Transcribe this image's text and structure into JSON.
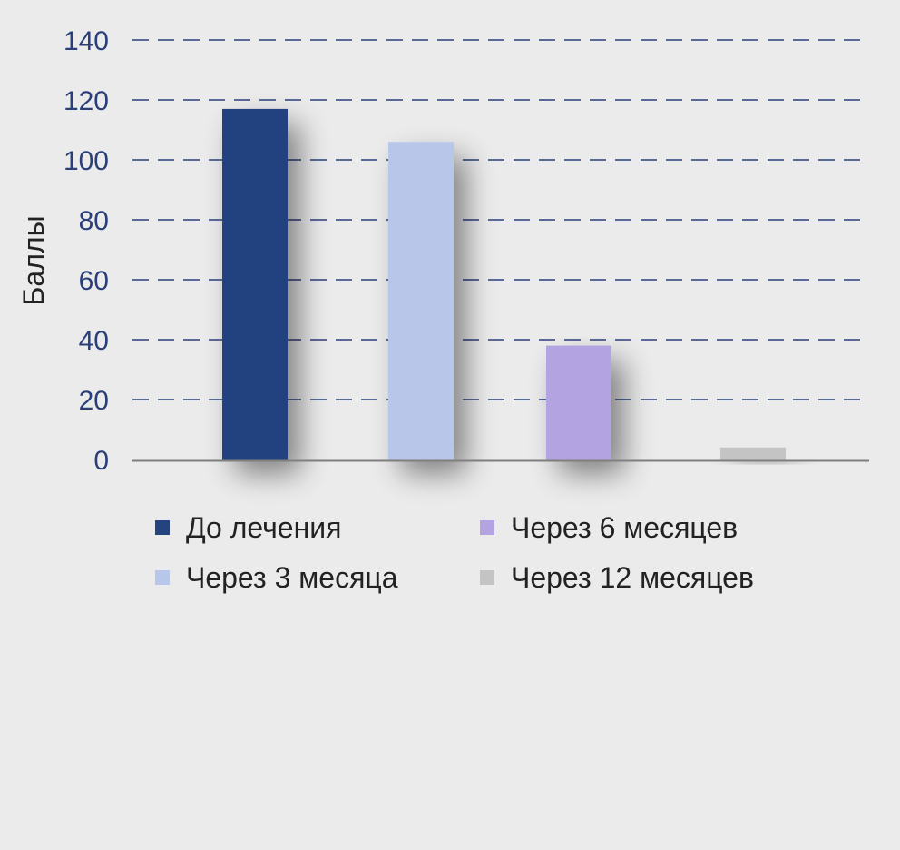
{
  "chart_data": {
    "type": "bar",
    "ylabel": "Баллы",
    "xlabel": "",
    "ylim": [
      0,
      140
    ],
    "yticks": [
      0,
      20,
      40,
      60,
      80,
      100,
      120,
      140
    ],
    "grid": true,
    "legend_position": "bottom",
    "series": [
      {
        "name": "До лечения",
        "value": 117,
        "color": "#24437f"
      },
      {
        "name": "Через 3 месяца",
        "value": 106,
        "color": "#b8c6ea"
      },
      {
        "name": "Через 6 месяцев",
        "value": 38,
        "color": "#b3a3e0"
      },
      {
        "name": "Через 12 месяцев",
        "value": 4,
        "color": "#c4c4c4"
      }
    ]
  },
  "colors": {
    "background": "#ebebeb",
    "grid": "#2a3f7a",
    "tick_text": "#2a3f7a",
    "axis": "#808080"
  }
}
